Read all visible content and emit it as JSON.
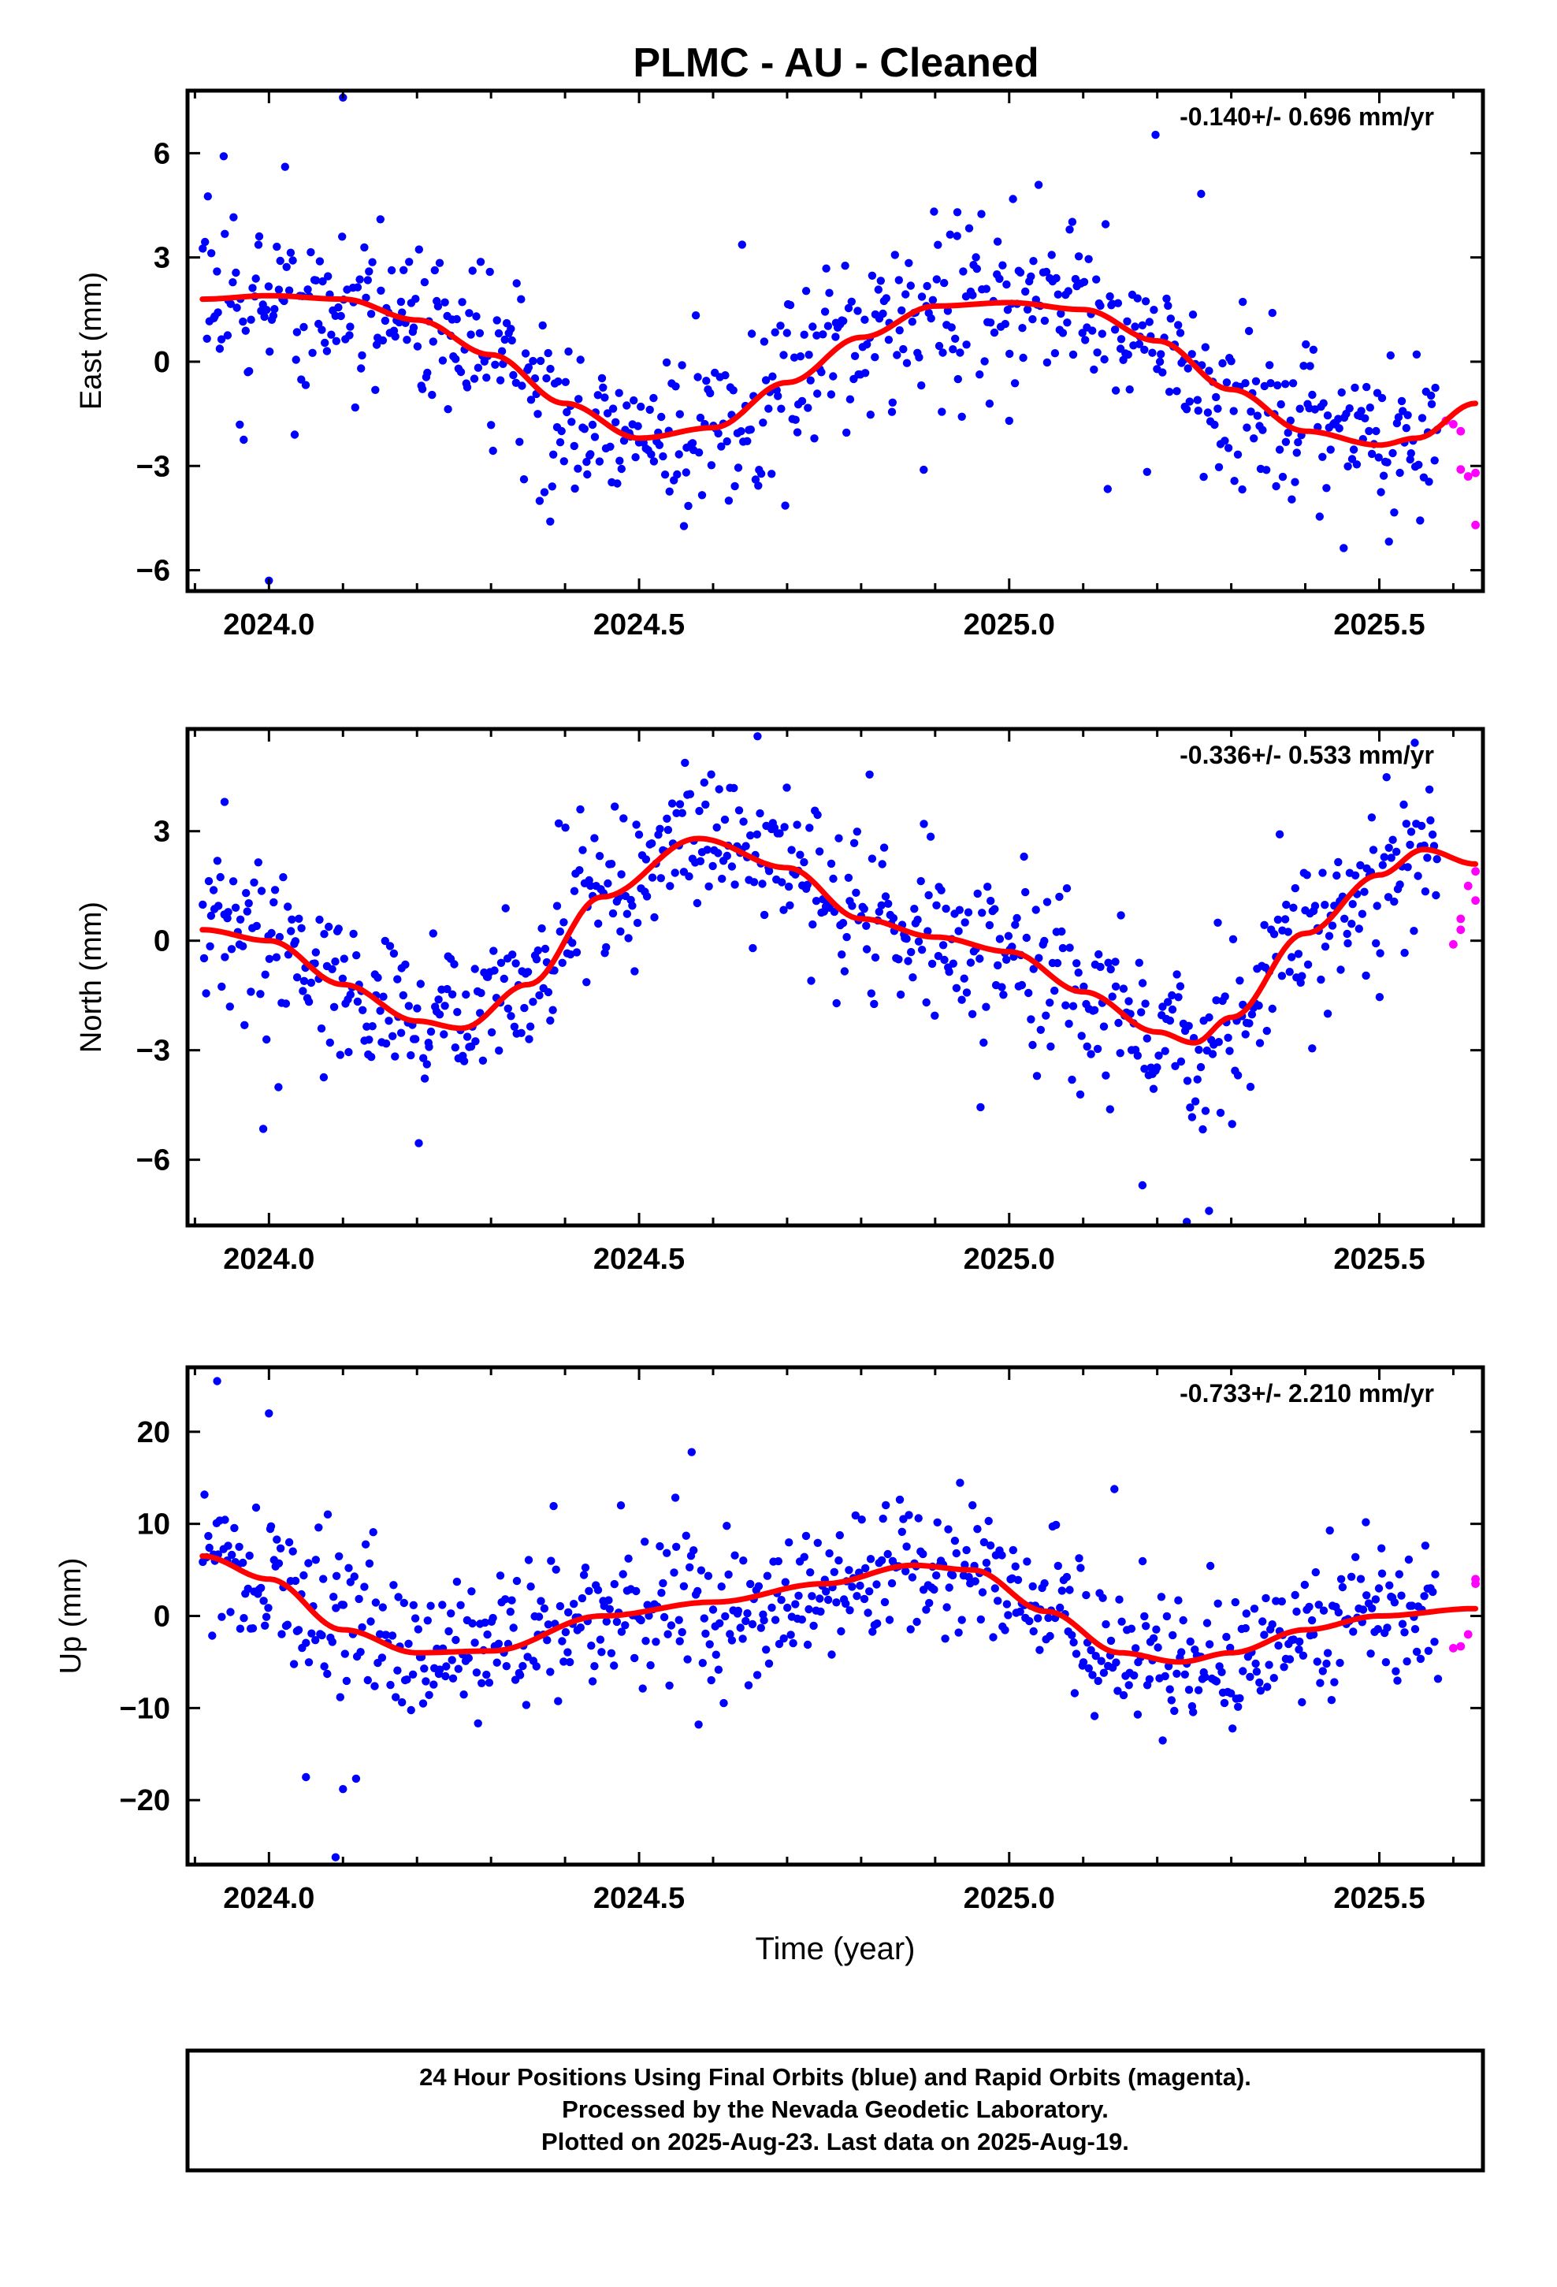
{
  "title": "PLMC  - AU - Cleaned",
  "footer": {
    "lines": [
      "24 Hour Positions Using Final Orbits (blue) and Rapid Orbits (magenta).",
      "Processed by the Nevada Geodetic Laboratory.",
      "Plotted on 2025-Aug-23. Last data on 2025-Aug-19."
    ]
  },
  "colors": {
    "final": "#0000ff",
    "rapid": "#ff00ff",
    "fit": "#ff0000",
    "frame": "#000000"
  },
  "chart_data": [
    {
      "type": "scatter",
      "panel": "east",
      "ylabel": "East (mm)",
      "xlabel": "",
      "rate_label": "-0.140+/- 0.696 mm/yr",
      "xlim": [
        2023.89,
        2025.64
      ],
      "ylim": [
        -6.6,
        7.8
      ],
      "x_ticks": [
        2024.0,
        2024.5,
        2025.0,
        2025.5
      ],
      "x_tick_labels": [
        "2024.0",
        "2024.5",
        "2025.0",
        "2025.5"
      ],
      "y_ticks": [
        6,
        3,
        0,
        -3,
        -6
      ],
      "y_tick_labels": [
        "6",
        "3",
        "0",
        "−3",
        "−6"
      ],
      "fit_curve": {
        "x": [
          2023.91,
          2024.0,
          2024.1,
          2024.2,
          2024.3,
          2024.4,
          2024.5,
          2024.6,
          2024.7,
          2024.8,
          2024.9,
          2025.0,
          2025.1,
          2025.2,
          2025.3,
          2025.4,
          2025.5,
          2025.55,
          2025.63
        ],
        "y": [
          1.8,
          1.9,
          1.8,
          1.2,
          0.2,
          -1.2,
          -2.2,
          -1.9,
          -0.6,
          0.7,
          1.6,
          1.7,
          1.5,
          0.6,
          -0.8,
          -2.0,
          -2.4,
          -2.2,
          -1.2
        ]
      },
      "rapid_points": {
        "x": [
          2025.59,
          2025.6,
          2025.61,
          2025.61,
          2025.62,
          2025.63,
          2025.63
        ],
        "y": [
          -1.7,
          -1.8,
          -2.0,
          -3.1,
          -3.3,
          -3.2,
          -4.7
        ]
      },
      "final_points_model": {
        "x_start": 2023.91,
        "x_end": 2025.58,
        "count": 720,
        "scatter_mm": 1.15,
        "outlier_mm": 2.6,
        "outlier_rate": 0.04,
        "seed": 101,
        "extremes": {
          "x": [
            2024.1,
            2024.0,
            2024.38,
            2024.93,
            2025.0
          ],
          "y": [
            7.6,
            -6.3,
            -4.6,
            4.3,
            -1.7
          ]
        }
      }
    },
    {
      "type": "scatter",
      "panel": "north",
      "ylabel": "North (mm)",
      "xlabel": "",
      "rate_label": "-0.336+/- 0.533 mm/yr",
      "xlim": [
        2023.89,
        2025.64
      ],
      "ylim": [
        -7.8,
        5.8
      ],
      "x_ticks": [
        2024.0,
        2024.5,
        2025.0,
        2025.5
      ],
      "x_tick_labels": [
        "2024.0",
        "2024.5",
        "2025.0",
        "2025.5"
      ],
      "y_ticks": [
        3,
        0,
        -3,
        -6
      ],
      "y_tick_labels": [
        "3",
        "0",
        "−3",
        "−6"
      ],
      "fit_curve": {
        "x": [
          2023.91,
          2024.0,
          2024.1,
          2024.2,
          2024.26,
          2024.35,
          2024.45,
          2024.58,
          2024.7,
          2024.8,
          2024.9,
          2025.0,
          2025.1,
          2025.2,
          2025.25,
          2025.3,
          2025.4,
          2025.5,
          2025.56,
          2025.63
        ],
        "y": [
          0.3,
          0.0,
          -1.2,
          -2.2,
          -2.4,
          -1.2,
          1.2,
          2.8,
          2.0,
          0.6,
          0.1,
          -0.3,
          -1.4,
          -2.5,
          -2.8,
          -2.1,
          0.2,
          1.8,
          2.5,
          2.1
        ]
      },
      "rapid_points": {
        "x": [
          2025.6,
          2025.61,
          2025.61,
          2025.62,
          2025.63,
          2025.63
        ],
        "y": [
          -0.1,
          0.3,
          0.6,
          1.5,
          1.9,
          1.1
        ]
      },
      "final_points_model": {
        "x_start": 2023.91,
        "x_end": 2025.58,
        "count": 720,
        "scatter_mm": 1.0,
        "outlier_mm": 2.4,
        "outlier_rate": 0.04,
        "seed": 202,
        "extremes": {
          "x": [
            2024.66,
            2025.27,
            2025.24,
            2025.18,
            2023.94
          ],
          "y": [
            5.6,
            -7.4,
            -7.7,
            -6.7,
            3.8
          ]
        }
      }
    },
    {
      "type": "scatter",
      "panel": "up",
      "ylabel": "Up (mm)",
      "xlabel": "Time (year)",
      "rate_label": "-0.733+/- 2.210 mm/yr",
      "xlim": [
        2023.89,
        2025.64
      ],
      "ylim": [
        -27,
        27
      ],
      "x_ticks": [
        2024.0,
        2024.5,
        2025.0,
        2025.5
      ],
      "x_tick_labels": [
        "2024.0",
        "2024.5",
        "2025.0",
        "2025.5"
      ],
      "y_ticks": [
        20,
        10,
        0,
        -10,
        -20
      ],
      "y_tick_labels": [
        "20",
        "10",
        "0",
        "−10",
        "−20"
      ],
      "fit_curve": {
        "x": [
          2023.91,
          2024.0,
          2024.1,
          2024.2,
          2024.3,
          2024.45,
          2024.6,
          2024.75,
          2024.87,
          2024.95,
          2025.05,
          2025.15,
          2025.23,
          2025.3,
          2025.4,
          2025.5,
          2025.63
        ],
        "y": [
          6.5,
          4.0,
          -1.5,
          -4.0,
          -3.8,
          0.0,
          1.5,
          3.5,
          5.5,
          5.0,
          0.5,
          -4.0,
          -5.0,
          -4.0,
          -1.5,
          0.0,
          0.8
        ]
      },
      "rapid_points": {
        "x": [
          2025.6,
          2025.61,
          2025.62,
          2025.63,
          2025.63
        ],
        "y": [
          -3.5,
          -3.3,
          -2.0,
          3.5,
          4.0
        ]
      },
      "final_points_model": {
        "x_start": 2023.91,
        "x_end": 2025.58,
        "count": 720,
        "scatter_mm": 3.8,
        "outlier_mm": 9.0,
        "outlier_rate": 0.04,
        "seed": 303,
        "extremes": {
          "x": [
            2023.93,
            2024.0,
            2024.09,
            2024.1,
            2024.05
          ],
          "y": [
            25.5,
            22.0,
            -26.2,
            -18.8,
            -17.5
          ]
        }
      }
    }
  ]
}
